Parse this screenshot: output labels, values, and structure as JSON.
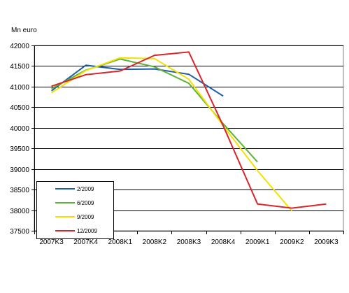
{
  "chart_data": {
    "type": "line",
    "title": "",
    "ylabel": "Mn euro",
    "xlabel": "",
    "categories": [
      "2007K3",
      "2007K4",
      "2008K1",
      "2008K2",
      "2008K3",
      "2008K4",
      "2009K1",
      "2009K2",
      "2009K3"
    ],
    "ylim": [
      37500,
      42000
    ],
    "yticks": [
      37500,
      38000,
      38500,
      39000,
      39500,
      40000,
      40500,
      41000,
      41500,
      42000
    ],
    "grid": true,
    "legend_position": "bottom-left",
    "series": [
      {
        "name": "2/2009",
        "color": "#1f5fa8",
        "values": [
          40900,
          41520,
          41420,
          41430,
          41300,
          40770,
          null,
          null,
          null
        ]
      },
      {
        "name": "6/2009",
        "color": "#5fb33a",
        "values": [
          40950,
          41400,
          41670,
          41480,
          41080,
          40100,
          39170,
          null,
          null
        ]
      },
      {
        "name": "9/2009",
        "color": "#f5e000",
        "values": [
          40850,
          41390,
          41700,
          41680,
          41180,
          40050,
          38960,
          37980,
          null
        ]
      },
      {
        "name": "12/2009",
        "color": "#d7262b",
        "values": [
          41010,
          41290,
          41380,
          41760,
          41840,
          40050,
          38150,
          38050,
          38150
        ]
      }
    ]
  }
}
